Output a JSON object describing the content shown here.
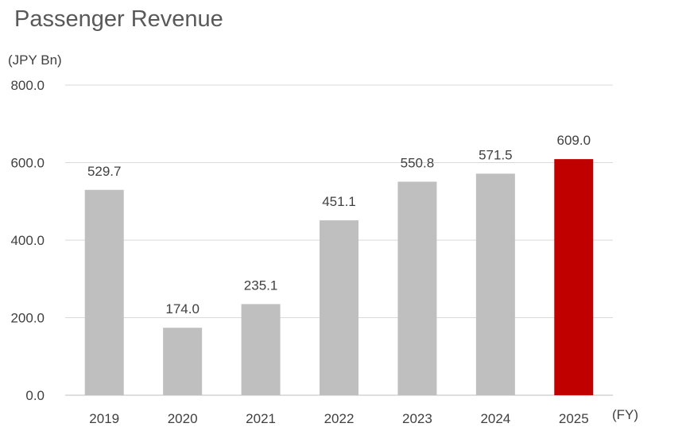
{
  "chart_data": {
    "type": "bar",
    "title": "Passenger Revenue",
    "y_unit": "(JPY Bn)",
    "x_unit": "(FY)",
    "categories": [
      "2019",
      "2020",
      "2021",
      "2022",
      "2023",
      "2024",
      "2025"
    ],
    "series": [
      {
        "values": [
          529.7,
          174.0,
          235.1,
          451.1,
          550.8,
          571.5,
          609.0
        ]
      }
    ],
    "data_labels": [
      "529.7",
      "174.0",
      "235.1",
      "451.1",
      "550.8",
      "571.5",
      "609.0"
    ],
    "ylim": [
      0,
      800
    ],
    "y_ticks": [
      0,
      200,
      400,
      600,
      800
    ],
    "y_tick_labels": [
      "0.0",
      "200.0",
      "400.0",
      "600.0",
      "800.0"
    ],
    "grid": true,
    "legend": "none",
    "colors": {
      "default_bar": "#bfbfbf",
      "highlight_bar": "#c00000",
      "grid": "#d9d9d9"
    },
    "highlight_category": "2025"
  }
}
